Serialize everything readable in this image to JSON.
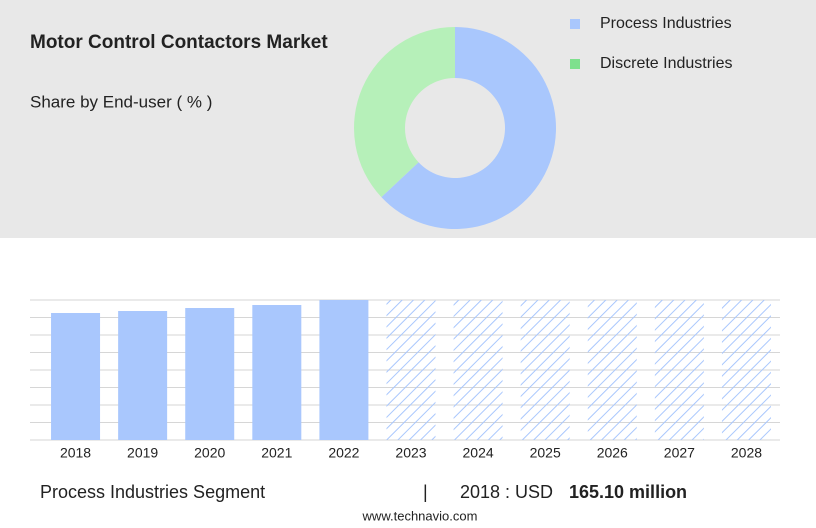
{
  "chart_data": [
    {
      "type": "donut",
      "title": "Motor Control Contactors Market",
      "subtitle": "Share by End-user ( % )",
      "categories": [
        "Process Industries",
        "Discrete Industries"
      ],
      "values": [
        63,
        37
      ],
      "colors": [
        "#a9c7fd",
        "#b6f0b9"
      ],
      "legend_colors": [
        "#a9c7fd",
        "#7ee08d"
      ],
      "legend": "top-right"
    },
    {
      "type": "bar",
      "categories": [
        "2018",
        "2019",
        "2020",
        "2021",
        "2022",
        "2023",
        "2024",
        "2025",
        "2026",
        "2027",
        "2028"
      ],
      "values": [
        165.1,
        167.7,
        171.6,
        175.5,
        182,
        null,
        null,
        null,
        null,
        null,
        null
      ],
      "color": "#a9c7fd",
      "ylim": [
        0,
        182
      ],
      "grid": true
    }
  ],
  "footer": {
    "segment": "Process Industries Segment",
    "separator": "|",
    "year_label": "2018 : USD",
    "value_label": "165.10 million",
    "source": "www.technavio.com"
  }
}
